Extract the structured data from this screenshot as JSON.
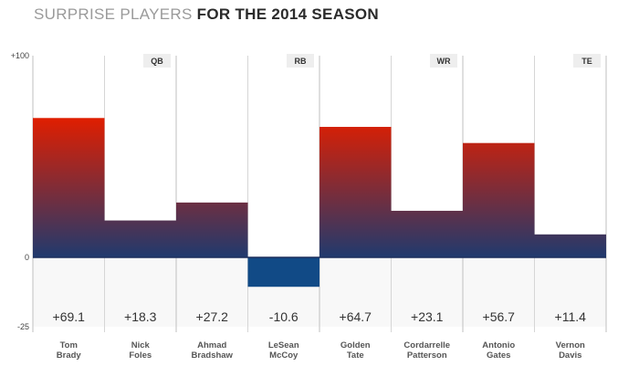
{
  "header": {
    "title_light": "SURPRISE PLAYERS",
    "title_bold": "FOR THE 2014 SEASON"
  },
  "colors": {
    "bar_top": "#e01e00",
    "bar_bottom": "#203a6e",
    "negative_bar": "#114a86",
    "zero_line": "#1c2e5c",
    "divider": "#d6d6d6",
    "position_tag_bg": "#eeeeee"
  },
  "chart_data": {
    "type": "bar",
    "title": "SURPRISE PLAYERS FOR THE 2014 SEASON",
    "xlabel": "",
    "ylabel": "",
    "ylim": [
      -25,
      100
    ],
    "y_ticks": [
      {
        "value": 100,
        "label": "+100"
      },
      {
        "value": 0,
        "label": "0"
      },
      {
        "value": -25,
        "label": "-25"
      }
    ],
    "categories": [
      [
        "Tom",
        "Brady"
      ],
      [
        "Nick",
        "Foles"
      ],
      [
        "Ahmad",
        "Bradshaw"
      ],
      [
        "LeSean",
        "McCoy"
      ],
      [
        "Golden",
        "Tate"
      ],
      [
        "Cordarrelle",
        "Patterson"
      ],
      [
        "Antonio",
        "Gates"
      ],
      [
        "Vernon",
        "Davis"
      ]
    ],
    "values": [
      69.1,
      18.3,
      27.2,
      -10.6,
      64.7,
      23.1,
      56.7,
      11.4
    ],
    "value_labels": [
      "+69.1",
      "+18.3",
      "+27.2",
      "-10.6",
      "+64.7",
      "+23.1",
      "+56.7",
      "+11.4"
    ],
    "position_groups": [
      {
        "label": "QB",
        "start": 0,
        "end": 1
      },
      {
        "label": "RB",
        "start": 2,
        "end": 3
      },
      {
        "label": "WR",
        "start": 4,
        "end": 5
      },
      {
        "label": "TE",
        "start": 6,
        "end": 7
      }
    ]
  }
}
